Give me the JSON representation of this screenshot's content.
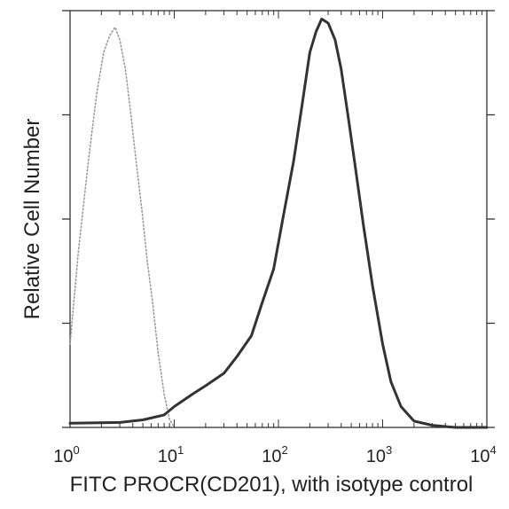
{
  "chart_data": {
    "type": "line",
    "title": "",
    "xlabel": "FITC PROCR(CD201), with isotype control",
    "ylabel": "Relative Cell Number",
    "x_scale": "log",
    "xlim": [
      1,
      10000
    ],
    "ylim": [
      0,
      100
    ],
    "x_ticks": [
      {
        "base": "10",
        "exp": "0",
        "value": 1
      },
      {
        "base": "10",
        "exp": "1",
        "value": 10
      },
      {
        "base": "10",
        "exp": "2",
        "value": 100
      },
      {
        "base": "10",
        "exp": "3",
        "value": 1000
      },
      {
        "base": "10",
        "exp": "4",
        "value": 10000
      }
    ],
    "y_ticks": [
      0,
      25,
      50,
      75,
      100
    ],
    "grid": false,
    "legend": "none",
    "series": [
      {
        "style": "dotted",
        "color": "#9a9a9a",
        "x": [
          1.0,
          1.2,
          1.5,
          1.8,
          2.1,
          2.4,
          2.7,
          3.0,
          3.4,
          3.8,
          4.3,
          4.9,
          5.5,
          6.2,
          7.0,
          8.0,
          9.0,
          10.0
        ],
        "y": [
          20,
          42,
          64,
          80,
          90,
          94,
          96,
          93,
          86,
          76,
          64,
          52,
          40,
          30,
          18,
          8,
          2,
          0
        ]
      },
      {
        "style": "solid",
        "color": "#333333",
        "x": [
          1,
          3,
          5,
          8,
          10,
          15,
          20,
          30,
          40,
          55,
          70,
          90,
          110,
          140,
          170,
          200,
          230,
          260,
          300,
          350,
          400,
          470,
          550,
          650,
          800,
          1000,
          1200,
          1500,
          2000,
          3000,
          5000,
          10000
        ],
        "y": [
          1,
          1.2,
          1.8,
          3,
          5,
          8,
          10,
          13,
          17,
          22,
          30,
          38,
          50,
          64,
          78,
          90,
          95,
          98,
          97,
          93,
          86,
          74,
          62,
          49,
          34,
          20,
          11,
          5,
          1.5,
          0.5,
          0,
          0
        ]
      }
    ]
  }
}
